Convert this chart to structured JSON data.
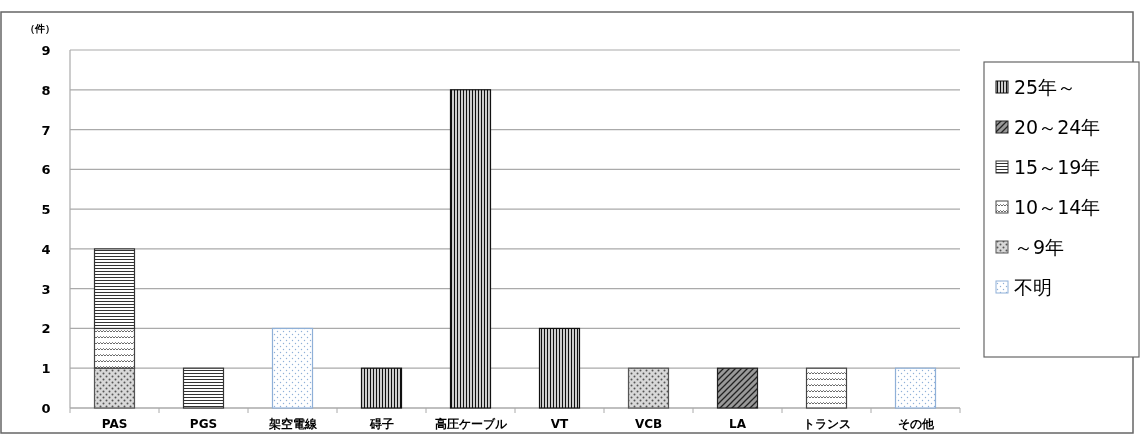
{
  "chart_data": {
    "type": "bar",
    "stacked": true,
    "ylabel": "（件）",
    "categories": [
      "PAS",
      "PGS",
      "架空電線",
      "碍子",
      "高圧ケーブル",
      "VT",
      "VCB",
      "LA",
      "トランス",
      "その他"
    ],
    "series": [
      {
        "name": "不明",
        "color": "#8fb0d8",
        "values": [
          null,
          null,
          2,
          null,
          null,
          null,
          null,
          null,
          null,
          1
        ]
      },
      {
        "name": "～9年",
        "color": "#555555",
        "values": [
          1,
          null,
          null,
          null,
          null,
          null,
          1,
          null,
          null,
          null
        ]
      },
      {
        "name": "10～14年",
        "color": "#444444",
        "values": [
          1,
          null,
          null,
          null,
          null,
          null,
          null,
          null,
          1,
          null
        ]
      },
      {
        "name": "15～19年",
        "color": "#333333",
        "values": [
          2,
          1,
          null,
          null,
          null,
          null,
          null,
          null,
          null,
          null
        ]
      },
      {
        "name": "20～24年",
        "color": "#222222",
        "values": [
          null,
          null,
          null,
          null,
          null,
          null,
          null,
          1,
          null,
          null
        ]
      },
      {
        "name": "25年～",
        "color": "#111111",
        "values": [
          null,
          null,
          null,
          1,
          8,
          2,
          null,
          null,
          null,
          null
        ]
      }
    ],
    "ylim": [
      0,
      9
    ],
    "yticks": [
      0,
      1,
      2,
      3,
      4,
      5,
      6,
      7,
      8,
      9
    ],
    "grid": "y",
    "legend": "right"
  }
}
